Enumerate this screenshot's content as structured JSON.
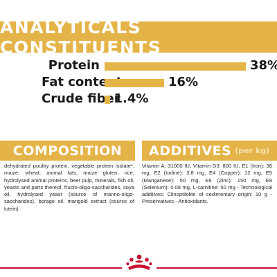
{
  "analytics": {
    "title": "ANALYTICALS CONSTITUENTS",
    "rows": [
      {
        "label": "Protein",
        "value": "38%",
        "percent": 38
      },
      {
        "label": "Fat content",
        "value": "16%",
        "percent": 16
      },
      {
        "label": "Crude fiber",
        "value": "1.4%",
        "percent": 1.4
      }
    ]
  },
  "composition": {
    "title": "COMPOSITION",
    "text": "dehydrated poultry protein, vegetable protein isolate*, maize, wheat, animal fats, maize gluten, rice, hydrolysed animal proteins, beet pulp, minerals, fish oil, yeasts and parts thereof, fructo-oligo-saccharides, soya oil, hydrolysed yeast (source of manno-oligo-saccharides), borage oil, marigold extract (source of lutein)."
  },
  "additives": {
    "title": "ADDITIVES",
    "unit": "(per kg)",
    "text": "Vitamin A: 31000 IU, Vitamin D3: 800 IU, E1 (Iron): 38 mg, E2 (Iodine): 3.8 mg, E4 (Copper): 12 mg, E5 (Manganese): 50 mg, E6 (Zinc): 150 mg, E8 (Selenium): 0.08 mg, L-carnitine: 50 mg - Technological additives: Clinoptilolite of sedimentary origin: 10 g - Preservatives - Antioxidants."
  },
  "colors": {
    "accent": "#e5b448",
    "brand_red": "#c8102e"
  },
  "icons": {
    "logo": "royal-canin-crown-icon"
  }
}
